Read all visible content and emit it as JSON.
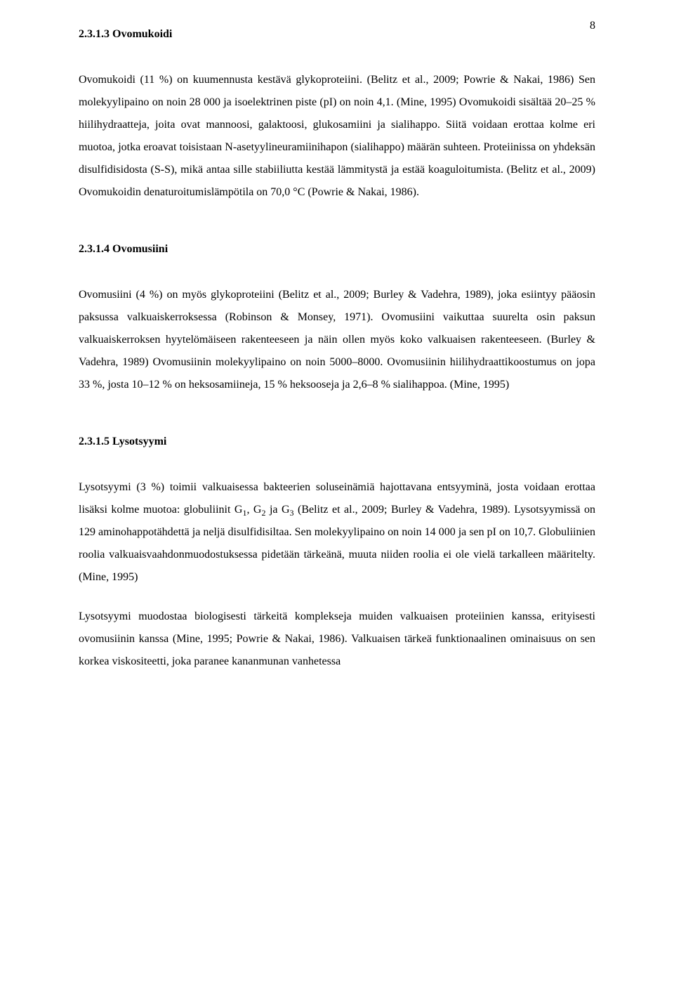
{
  "page_number": "8",
  "text_color": "#000000",
  "background_color": "#ffffff",
  "font_family": "Times New Roman",
  "body_fontsize": 16,
  "heading_fontweight": "bold",
  "line_height": 2.0,
  "text_align": "justify",
  "sections": {
    "s1": {
      "heading": "2.3.1.3 Ovomukoidi",
      "p1": "Ovomukoidi (11 %) on kuumennusta kestävä glykoproteiini. (Belitz et al., 2009; Powrie & Nakai, 1986) Sen molekyylipaino on noin 28 000 ja isoelektrinen piste (pI) on noin 4,1. (Mine, 1995) Ovomukoidi sisältää 20–25 % hiilihydraatteja, joita ovat mannoosi, galaktoosi, glukosamiini ja sialihappo. Siitä voidaan erottaa kolme eri muotoa, jotka eroavat toisistaan N-asetyylineuramiinihapon (sialihappo) määrän suhteen. Proteiinissa on yhdeksän disulfidisidosta (S-S), mikä antaa sille stabiiliutta kestää lämmitystä ja estää koaguloitumista. (Belitz et al., 2009) Ovomukoidin denaturoitumislämpötila on 70,0 °C (Powrie & Nakai, 1986)."
    },
    "s2": {
      "heading": "2.3.1.4 Ovomusiini",
      "p1": "Ovomusiini (4 %) on myös glykoproteiini (Belitz et al., 2009; Burley & Vadehra, 1989), joka esiintyy pääosin paksussa valkuaiskerroksessa (Robinson & Monsey, 1971). Ovomusiini vaikuttaa suurelta osin paksun valkuaiskerroksen hyytelömäiseen rakenteeseen ja näin ollen myös koko valkuaisen rakenteeseen. (Burley & Vadehra, 1989) Ovomusiinin molekyylipaino on noin 5000–8000. Ovomusiinin hiilihydraattikoostumus on jopa 33 %, josta 10–12 % on heksosamiineja, 15 % heksooseja ja 2,6–8 % sialihappoa. (Mine, 1995)"
    },
    "s3": {
      "heading": "2.3.1.5 Lysotsyymi",
      "p1_a": "Lysotsyymi (3 %) toimii valkuaisessa bakteerien soluseinämiä hajottavana entsyyminä, josta voidaan erottaa lisäksi kolme muotoa: globuliinit G",
      "p1_g1": "1",
      "p1_b": ", G",
      "p1_g2": "2",
      "p1_c": " ja G",
      "p1_g3": "3",
      "p1_d": " (Belitz et al., 2009; Burley & Vadehra, 1989). Lysotsyymissä on 129 aminohappotähdettä ja neljä disulfidisiltaa. Sen molekyylipaino on noin 14 000 ja sen pI on 10,7. Globuliinien roolia valkuaisvaahdonmuodostuksessa pidetään tärkeänä, muuta niiden roolia ei ole vielä tarkalleen määritelty. (Mine, 1995)",
      "p2": "Lysotsyymi muodostaa biologisesti tärkeitä komplekseja muiden valkuaisen proteiinien kanssa, erityisesti ovomusiinin kanssa (Mine, 1995; Powrie & Nakai, 1986). Valkuaisen tärkeä funktionaalinen ominaisuus on sen korkea viskositeetti, joka paranee kananmunan vanhetessa"
    }
  }
}
